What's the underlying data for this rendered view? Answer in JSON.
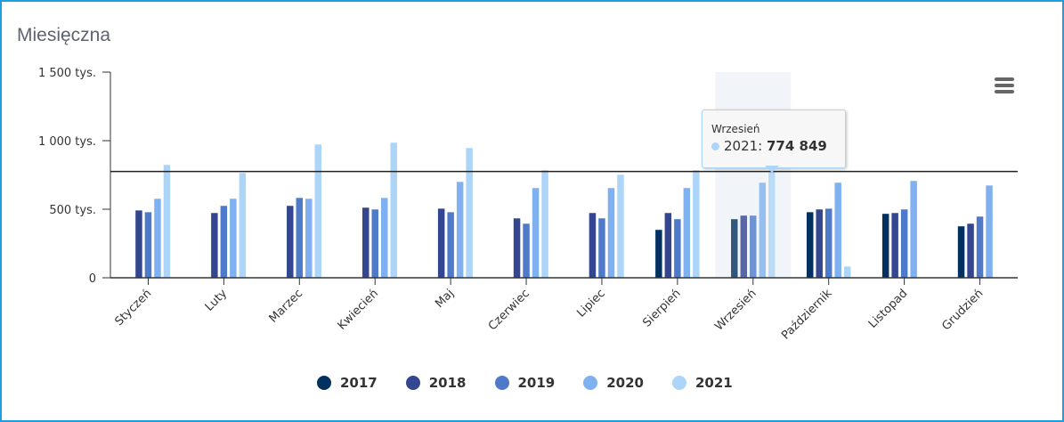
{
  "chart_data": {
    "type": "bar",
    "title": "Miesięczna",
    "xlabel": "",
    "ylabel": "",
    "ylim": [
      0,
      1500
    ],
    "yticks": [
      {
        "value": 0,
        "label": "0"
      },
      {
        "value": 500,
        "label": "500 tys."
      },
      {
        "value": 1000,
        "label": "1 000 tys."
      },
      {
        "value": 1500,
        "label": "1 500 tys."
      }
    ],
    "grid": false,
    "legend_position": "bottom",
    "categories": [
      "Styczeń",
      "Luty",
      "Marzec",
      "Kwiecień",
      "Maj",
      "Czerwiec",
      "Lipiec",
      "Sierpień",
      "Wrzesień",
      "Październik",
      "Listopad",
      "Grudzień"
    ],
    "series": [
      {
        "name": "2017",
        "color": "#02305f",
        "values": [
          null,
          null,
          null,
          null,
          null,
          null,
          null,
          351,
          429,
          480,
          468,
          377
        ]
      },
      {
        "name": "2018",
        "color": "#34468f",
        "values": [
          493,
          474,
          526,
          513,
          506,
          435,
          474,
          474,
          455,
          500,
          474,
          396
        ]
      },
      {
        "name": "2019",
        "color": "#4f7ac9",
        "values": [
          480,
          526,
          584,
          500,
          480,
          396,
          435,
          429,
          455,
          506,
          500,
          448
        ]
      },
      {
        "name": "2020",
        "color": "#7fb1f0",
        "values": [
          578,
          578,
          578,
          584,
          701,
          656,
          656,
          656,
          695,
          695,
          708,
          675
        ]
      },
      {
        "name": "2021",
        "color": "#acd5f8",
        "values": [
          825,
          766,
          974,
          987,
          948,
          786,
          753,
          786,
          774.849,
          84,
          null,
          null
        ]
      }
    ],
    "highlighted_category": "Wrzesień",
    "crosshair_value": 774.849,
    "tooltip": {
      "category": "Wrzesień",
      "series": "2021",
      "label": "2021: ",
      "value": "774 849"
    }
  }
}
